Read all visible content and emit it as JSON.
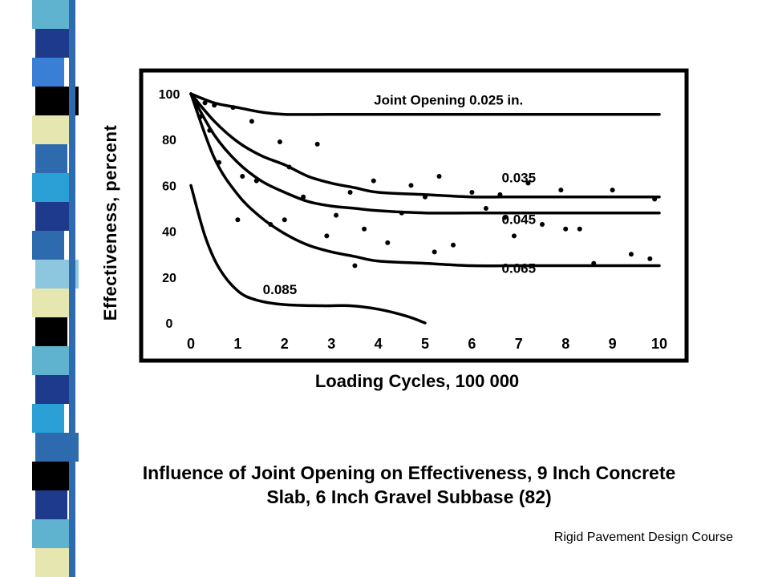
{
  "slide": {
    "caption_line1": "Influence of Joint Opening on Effectiveness, 9 Inch Concrete",
    "caption_line2": "Slab, 6 Inch Gravel Subbase (82)",
    "footer": "Rigid Pavement Design Course"
  },
  "stripe_colors": [
    "#5FB3CF",
    "#1E3A8C",
    "#3A7FD6",
    "#000000",
    "#E6E6B0",
    "#2E6BAE",
    "#2AA0D6",
    "#1E3A8C",
    "#2E6BAE",
    "#8CC7DF",
    "#E6E6B0",
    "#000000",
    "#5FB3CF",
    "#1E3A8C",
    "#2AA0D6",
    "#2E6BAE",
    "#000000",
    "#1E3A8C",
    "#5FB3CF",
    "#E6E6B0"
  ],
  "chart_data": {
    "type": "line",
    "xlabel": "Loading Cycles, 100 000",
    "ylabel": "Effectiveness, percent",
    "xlim": [
      0,
      10
    ],
    "ylim": [
      0,
      100
    ],
    "x_ticks": [
      "0",
      "1",
      "2",
      "3",
      "4",
      "5",
      "6",
      "7",
      "8",
      "9",
      "10"
    ],
    "y_ticks": [
      "0",
      "20",
      "40",
      "60",
      "80",
      "100"
    ],
    "grid": false,
    "series": [
      {
        "name": "Joint Opening 0.025 in.",
        "x": [
          0,
          0.5,
          1,
          1.5,
          2,
          3,
          4,
          5,
          6,
          7,
          8,
          9,
          10
        ],
        "y": [
          100,
          96,
          94,
          92,
          91,
          91,
          91,
          91,
          91,
          91,
          91,
          91,
          91
        ]
      },
      {
        "name": "0.035",
        "x": [
          0,
          0.5,
          1,
          1.5,
          2,
          2.5,
          3,
          3.5,
          4,
          5,
          6,
          7,
          8,
          9,
          10
        ],
        "y": [
          100,
          88,
          79,
          73,
          69,
          64,
          61,
          59,
          57,
          56,
          55,
          55,
          55,
          55,
          55
        ]
      },
      {
        "name": "0.045",
        "x": [
          0,
          0.5,
          1,
          1.5,
          2,
          2.5,
          3,
          3.5,
          4,
          5,
          6,
          7,
          8,
          9,
          10
        ],
        "y": [
          100,
          82,
          70,
          62,
          57,
          53,
          51,
          50,
          49,
          48,
          48,
          48,
          48,
          48,
          48
        ]
      },
      {
        "name": "0.065",
        "x": [
          0,
          0.5,
          1,
          1.5,
          2,
          2.5,
          3,
          3.5,
          4,
          5,
          6,
          7,
          8,
          9,
          10
        ],
        "y": [
          100,
          72,
          56,
          46,
          39,
          34,
          31,
          29,
          27,
          26,
          25,
          25,
          25,
          25,
          25
        ]
      },
      {
        "name": "0.085",
        "x": [
          0,
          0.3,
          0.6,
          1,
          1.4,
          2,
          2.8,
          3.4,
          4,
          4.6,
          5
        ],
        "y": [
          60,
          38,
          24,
          14,
          10,
          8,
          7.5,
          7.5,
          6,
          3,
          0
        ]
      }
    ],
    "points": {
      "x": [
        0.1,
        0.2,
        0.3,
        0.4,
        0.5,
        0.6,
        0.9,
        1.0,
        1.1,
        1.3,
        1.4,
        1.7,
        1.9,
        2.0,
        2.1,
        2.4,
        2.7,
        2.9,
        3.1,
        3.4,
        3.7,
        3.9,
        4.2,
        4.5,
        4.7,
        5.0,
        5.3,
        5.6,
        6.0,
        6.3,
        6.6,
        6.9,
        7.2,
        7.5,
        7.9,
        8.3,
        8.6,
        9.0,
        9.4,
        9.8,
        9.9,
        3.5,
        5.2,
        6.7,
        8.0
      ],
      "y": [
        97,
        90,
        96,
        84,
        95,
        70,
        94,
        45,
        64,
        88,
        62,
        43,
        79,
        45,
        68,
        55,
        78,
        38,
        47,
        57,
        41,
        62,
        35,
        48,
        60,
        55,
        64,
        34,
        57,
        50,
        56,
        38,
        61,
        43,
        58,
        41,
        26,
        58,
        30,
        28,
        54,
        25,
        31,
        46,
        41
      ]
    },
    "annotations": [
      "Joint Opening 0.025 in.",
      "0.035",
      "0.045",
      "0.065",
      "0.085"
    ]
  }
}
